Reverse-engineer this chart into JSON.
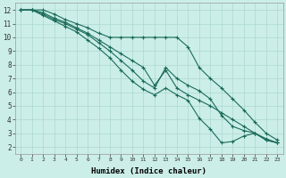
{
  "xlabel": "Humidex (Indice chaleur)",
  "bg_color": "#cceee8",
  "grid_color": "#aad8d0",
  "line_color": "#1a6b5a",
  "xlim": [
    -0.5,
    23.5
  ],
  "ylim": [
    1.5,
    12.5
  ],
  "yticks": [
    2,
    3,
    4,
    5,
    6,
    7,
    8,
    9,
    10,
    11,
    12
  ],
  "xticks": [
    0,
    1,
    2,
    3,
    4,
    5,
    6,
    7,
    8,
    9,
    10,
    11,
    12,
    13,
    14,
    15,
    16,
    17,
    18,
    19,
    20,
    21,
    22,
    23
  ],
  "series": [
    {
      "x": [
        0,
        1,
        2,
        3,
        4,
        5,
        6,
        7,
        8,
        9,
        10,
        11,
        12,
        13,
        14,
        15,
        16,
        17,
        18,
        19,
        20,
        21,
        22,
        23
      ],
      "y": [
        12,
        12,
        12,
        11.7,
        11.3,
        11.0,
        10.7,
        10.3,
        10.0,
        10.0,
        10.0,
        10.0,
        10.0,
        10.0,
        10.0,
        9.3,
        7.8,
        7.0,
        6.3,
        5.5,
        4.7,
        3.8,
        3.0,
        2.5
      ]
    },
    {
      "x": [
        0,
        1,
        2,
        3,
        4,
        5,
        6,
        7,
        8,
        9,
        10,
        11,
        12,
        13,
        14,
        15,
        16,
        17,
        18,
        19,
        20,
        21,
        22,
        23
      ],
      "y": [
        12,
        12,
        11.8,
        11.4,
        11.1,
        10.7,
        10.3,
        9.8,
        9.3,
        8.8,
        8.3,
        7.8,
        6.5,
        7.6,
        6.3,
        5.8,
        5.4,
        5.0,
        4.5,
        4.0,
        3.5,
        3.0,
        2.6,
        2.3
      ]
    },
    {
      "x": [
        0,
        1,
        2,
        3,
        4,
        5,
        6,
        7,
        8,
        9,
        10,
        11,
        12,
        13,
        14,
        15,
        16,
        17,
        18,
        19,
        20,
        21,
        22,
        23
      ],
      "y": [
        12,
        12,
        11.7,
        11.3,
        11.0,
        10.6,
        10.2,
        9.6,
        9.0,
        8.3,
        7.6,
        6.8,
        6.3,
        7.8,
        7.0,
        6.5,
        6.1,
        5.5,
        4.3,
        3.5,
        3.2,
        3.0,
        2.5,
        2.3
      ]
    },
    {
      "x": [
        0,
        1,
        2,
        3,
        4,
        5,
        6,
        7,
        8,
        9,
        10,
        11,
        12,
        13,
        14,
        15,
        16,
        17,
        18,
        19,
        20,
        21,
        22,
        23
      ],
      "y": [
        12,
        12,
        11.6,
        11.2,
        10.8,
        10.4,
        9.8,
        9.2,
        8.5,
        7.6,
        6.8,
        6.2,
        5.8,
        6.3,
        5.8,
        5.4,
        4.1,
        3.3,
        2.3,
        2.4,
        2.8,
        3.0,
        2.5,
        2.3
      ]
    }
  ]
}
